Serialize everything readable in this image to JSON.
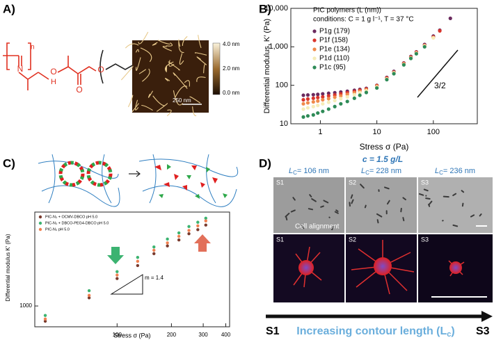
{
  "panels": {
    "A": {
      "label": "A)",
      "atoms": [
        "n",
        "N",
        "H",
        "O",
        "O",
        "O",
        "m"
      ],
      "colorbar": [
        "4.0 nm",
        "2.0 nm",
        "0.0 nm"
      ],
      "scalebar": "250 nm"
    },
    "B": {
      "label": "B)"
    },
    "C": {
      "label": "C)"
    },
    "D": {
      "label": "D)",
      "concentration": "c = 1.5 g/L",
      "lc_labels": [
        {
          "symbol": "L",
          "subscript": "C",
          "text": "= 106 nm"
        },
        {
          "symbol": "L",
          "subscript": "C",
          "text": "= 228 nm"
        },
        {
          "symbol": "L",
          "subscript": "C",
          "text": "= 236 nm"
        }
      ],
      "top_row": [
        "S1",
        "S2",
        "S3"
      ],
      "bottom_row": [
        "S1",
        "S2",
        "S3"
      ],
      "caption": "Cell alignment",
      "arrow_start": "S1",
      "arrow_end": "S3",
      "arrow_text": {
        "text": "Increasing contour length (L",
        "subscript": "c",
        "close": ")"
      }
    }
  },
  "chart_data": [
    {
      "type": "scatter",
      "legend_title": "PIC polymers (L (nm))",
      "subtitle": "conditions: C = 1 g l⁻¹, T = 37 °C",
      "x_label": "Stress σ (Pa)",
      "y_label": "Differential modulus, K′ (Pa)",
      "annotation": "3/2",
      "xscale": "log",
      "yscale": "log",
      "xlim": [
        0.3,
        600
      ],
      "ylim": [
        10,
        10000
      ],
      "xticks": [
        1,
        10,
        100
      ],
      "yticks": [
        10,
        100,
        {
          "value": 1000,
          "label": "1,000"
        },
        {
          "value": 10000,
          "label": "10,000"
        }
      ],
      "x": [
        0.5,
        0.6,
        0.75,
        0.9,
        1.1,
        1.4,
        1.8,
        2.3,
        3,
        4,
        5,
        6.5,
        10,
        15,
        20,
        30,
        40,
        50,
        70,
        100,
        130,
        200
      ],
      "series": [
        {
          "name": "P1g (179)",
          "color": "#6b2a5e",
          "values": [
            55,
            56,
            57,
            58,
            60,
            62,
            64,
            67,
            70,
            74,
            78,
            83,
            100,
            160,
            230,
            380,
            560,
            740,
            1150,
            1900,
            2700,
            5500
          ]
        },
        {
          "name": "P1f (158)",
          "color": "#d9342b",
          "values": [
            42,
            44,
            46,
            48,
            50,
            53,
            56,
            60,
            64,
            69,
            74,
            80,
            98,
            155,
            220,
            370,
            540,
            720,
            1100,
            1800,
            2600,
            null
          ]
        },
        {
          "name": "P1e (134)",
          "color": "#f08a4b",
          "values": [
            33,
            35,
            37,
            39,
            42,
            45,
            49,
            53,
            58,
            64,
            70,
            77,
            95,
            150,
            215,
            360,
            530,
            700,
            1080,
            1750,
            null,
            null
          ]
        },
        {
          "name": "P1d (110)",
          "color": "#f6ecb8",
          "values": [
            24,
            26,
            28,
            30,
            33,
            36,
            40,
            45,
            50,
            57,
            64,
            72,
            90,
            145,
            210,
            350,
            510,
            680,
            1050,
            1700,
            null,
            null
          ]
        },
        {
          "name": "P1c (95)",
          "color": "#2e8b57",
          "values": [
            15,
            16,
            17,
            19,
            21,
            24,
            28,
            33,
            38,
            46,
            55,
            65,
            85,
            140,
            200,
            340,
            500,
            660,
            1000,
            null,
            null,
            null
          ]
        }
      ]
    },
    {
      "type": "scatter",
      "x_label": "Stress σ (Pa)",
      "y_label": "Differential modulus K′ (Pa)",
      "annotation": "m = 1.4",
      "xscale": "log",
      "yscale": "log",
      "xlim": [
        35,
        420
      ],
      "ylim": [
        700,
        5000
      ],
      "xticks": [
        100,
        200,
        300,
        400
      ],
      "yticks": [
        1000
      ],
      "x": [
        40,
        70,
        100,
        130,
        160,
        190,
        220,
        250,
        280,
        310
      ],
      "series": [
        {
          "name": "PIC-N₃ + OCMV-DBCO pH 5.0",
          "color": "#7a3b2e",
          "values": [
            770,
            1150,
            1600,
            2000,
            2450,
            2800,
            3100,
            3450,
            3700,
            4000
          ]
        },
        {
          "name": "PIC-N₃ + DBCO-PEG4-DBCO pH 5.0",
          "color": "#3cb371",
          "values": [
            850,
            1300,
            1800,
            2300,
            2750,
            3150,
            3500,
            3900,
            4200,
            4500
          ]
        },
        {
          "name": "PIC-N₃ pH 5.0",
          "color": "#f08050",
          "values": [
            800,
            1200,
            1700,
            2150,
            2600,
            2950,
            3300,
            3650,
            3950,
            4300
          ]
        }
      ]
    }
  ]
}
